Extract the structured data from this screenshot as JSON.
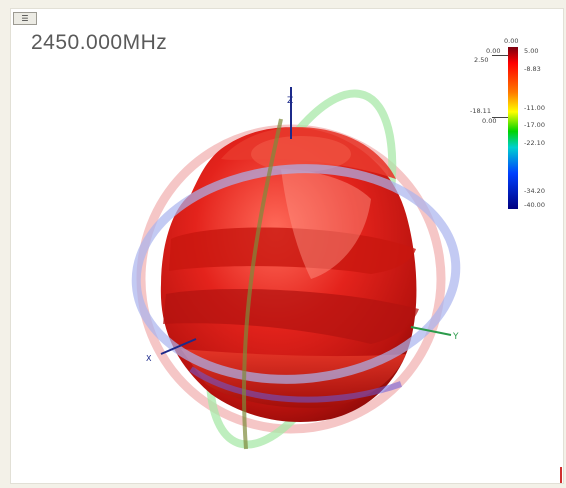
{
  "toolbar": {
    "menu_label": "☰"
  },
  "plot": {
    "frequency_label": "2450.000MHz",
    "axes": {
      "z": "Z",
      "x": "X",
      "y": "Y"
    },
    "colors": {
      "pattern": "#d82020",
      "ring_red": "#f0a0a0",
      "ring_blue": "#a8b4ee",
      "ring_green": "#9ee29e"
    }
  },
  "colorbar": {
    "top_label": "0.00",
    "left_labels": [
      "0.00",
      "2.50",
      "-18.11",
      "0.00"
    ],
    "right_labels": [
      "5.00",
      "-8.83",
      "-11.00",
      "-17.00",
      "-22.10",
      "-34.20",
      "-40.00"
    ]
  }
}
